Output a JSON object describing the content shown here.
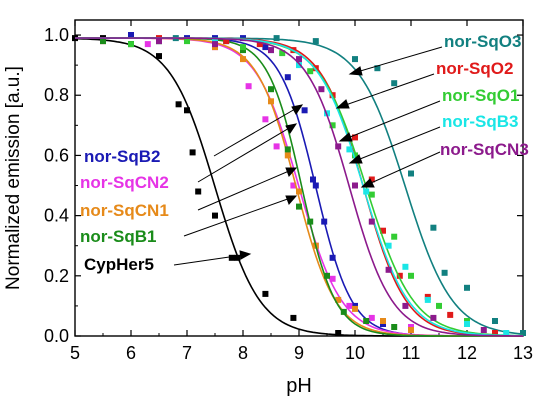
{
  "chart_data": {
    "type": "scatter",
    "xlabel": "pH",
    "ylabel": "Normalized emission [a.u.]",
    "xlim": [
      5,
      13
    ],
    "ylim": [
      0,
      1.05
    ],
    "x_ticks": [
      5,
      6,
      7,
      8,
      9,
      10,
      11,
      12,
      13
    ],
    "y_ticks": [
      0.0,
      0.2,
      0.4,
      0.6,
      0.8,
      1.0
    ],
    "x_tick_labels": [
      "5",
      "6",
      "7",
      "8",
      "9",
      "10",
      "11",
      "12",
      "13"
    ],
    "y_tick_labels": [
      "0.0",
      "0.2",
      "0.4",
      "0.6",
      "0.8",
      "1.0"
    ],
    "grid": false,
    "fit_curves": "sigmoidal (Boltzmann) fit per series",
    "series": [
      {
        "name": "CypHer5",
        "color": "#000000",
        "pKa": 7.5,
        "slope": 0.4,
        "points": [
          [
            5.0,
            0.99
          ],
          [
            5.5,
            0.99
          ],
          [
            6.0,
            0.97
          ],
          [
            6.5,
            0.93
          ],
          [
            6.85,
            0.77
          ],
          [
            7.0,
            0.75
          ],
          [
            7.1,
            0.61
          ],
          [
            7.2,
            0.48
          ],
          [
            7.5,
            0.4
          ],
          [
            7.8,
            0.26
          ],
          [
            7.9,
            0.26
          ],
          [
            8.4,
            0.14
          ],
          [
            8.9,
            0.06
          ],
          [
            9.7,
            0.01
          ]
        ]
      },
      {
        "name": "nor-SqB2",
        "color": "#1a1ab4",
        "pKa": 9.3,
        "slope": 0.32,
        "points": [
          [
            6.0,
            1.0
          ],
          [
            7.0,
            0.99
          ],
          [
            7.5,
            0.99
          ],
          [
            8.0,
            0.99
          ],
          [
            8.4,
            0.96
          ],
          [
            8.8,
            0.86
          ],
          [
            9.1,
            0.75
          ],
          [
            9.25,
            0.52
          ],
          [
            9.3,
            0.5
          ],
          [
            9.45,
            0.38
          ],
          [
            9.6,
            0.26
          ],
          [
            10.0,
            0.1
          ],
          [
            10.5,
            0.04
          ]
        ]
      },
      {
        "name": "nor-SqCN2",
        "color": "#e633e6",
        "pKa": 9.0,
        "slope": 0.38,
        "points": [
          [
            5.5,
            0.98
          ],
          [
            6.3,
            0.97
          ],
          [
            7.5,
            0.96
          ],
          [
            8.1,
            0.83
          ],
          [
            8.4,
            0.72
          ],
          [
            8.6,
            0.63
          ],
          [
            8.9,
            0.5
          ],
          [
            9.3,
            0.3
          ],
          [
            9.6,
            0.19
          ],
          [
            9.9,
            0.1
          ],
          [
            10.3,
            0.06
          ],
          [
            11.0,
            0.03
          ]
        ]
      },
      {
        "name": "nor-SqCN1",
        "color": "#e68a1a",
        "pKa": 8.95,
        "slope": 0.35,
        "points": [
          [
            5.5,
            0.98
          ],
          [
            6.5,
            0.98
          ],
          [
            7.5,
            0.96
          ],
          [
            8.0,
            0.92
          ],
          [
            8.5,
            0.78
          ],
          [
            8.8,
            0.6
          ],
          [
            9.0,
            0.48
          ],
          [
            9.3,
            0.3
          ],
          [
            9.7,
            0.12
          ],
          [
            10.0,
            0.09
          ],
          [
            10.5,
            0.05
          ],
          [
            11.0,
            0.02
          ]
        ]
      },
      {
        "name": "nor-SqB1",
        "color": "#1a8c1a",
        "pKa": 9.05,
        "slope": 0.3,
        "points": [
          [
            5.5,
            0.98
          ],
          [
            6.5,
            0.98
          ],
          [
            7.5,
            0.98
          ],
          [
            8.0,
            0.95
          ],
          [
            8.5,
            0.82
          ],
          [
            8.8,
            0.62
          ],
          [
            9.0,
            0.43
          ],
          [
            9.2,
            0.38
          ],
          [
            9.5,
            0.2
          ],
          [
            9.8,
            0.08
          ],
          [
            10.2,
            0.05
          ],
          [
            10.7,
            0.03
          ]
        ]
      },
      {
        "name": "nor-SqO3",
        "color": "#128080",
        "pKa": 10.9,
        "slope": 0.42,
        "points": [
          [
            6.8,
            0.99
          ],
          [
            7.7,
            0.98
          ],
          [
            8.6,
            0.99
          ],
          [
            9.3,
            0.98
          ],
          [
            10.0,
            0.92
          ],
          [
            10.4,
            0.89
          ],
          [
            10.7,
            0.84
          ],
          [
            11.0,
            0.54
          ],
          [
            11.4,
            0.36
          ],
          [
            11.6,
            0.21
          ],
          [
            12.0,
            0.16
          ],
          [
            12.5,
            0.05
          ],
          [
            13.0,
            0.01
          ]
        ]
      },
      {
        "name": "nor-SqO2",
        "color": "#e01a1a",
        "pKa": 10.15,
        "slope": 0.38,
        "points": [
          [
            6.5,
            0.99
          ],
          [
            7.7,
            0.98
          ],
          [
            8.3,
            0.97
          ],
          [
            8.9,
            0.95
          ],
          [
            9.3,
            0.89
          ],
          [
            9.6,
            0.8
          ],
          [
            10.0,
            0.66
          ],
          [
            10.3,
            0.52
          ],
          [
            10.5,
            0.35
          ],
          [
            10.8,
            0.2
          ],
          [
            11.3,
            0.13
          ],
          [
            11.7,
            0.07
          ],
          [
            12.5,
            0.01
          ]
        ]
      },
      {
        "name": "nor-SqO1",
        "color": "#33cc33",
        "pKa": 10.2,
        "slope": 0.42,
        "points": [
          [
            6.0,
            0.97
          ],
          [
            7.0,
            0.98
          ],
          [
            8.0,
            0.96
          ],
          [
            8.7,
            0.94
          ],
          [
            9.2,
            0.88
          ],
          [
            9.6,
            0.7
          ],
          [
            10.0,
            0.6
          ],
          [
            10.3,
            0.47
          ],
          [
            10.7,
            0.33
          ],
          [
            11.0,
            0.2
          ],
          [
            11.5,
            0.1
          ],
          [
            12.0,
            0.05
          ]
        ]
      },
      {
        "name": "nor-SqB3",
        "color": "#1ae6e6",
        "pKa": 10.15,
        "slope": 0.4,
        "points": [
          [
            6.5,
            0.98
          ],
          [
            7.5,
            0.98
          ],
          [
            8.5,
            0.95
          ],
          [
            9.0,
            0.9
          ],
          [
            9.5,
            0.74
          ],
          [
            9.9,
            0.62
          ],
          [
            10.2,
            0.48
          ],
          [
            10.6,
            0.3
          ],
          [
            10.9,
            0.23
          ],
          [
            11.3,
            0.12
          ],
          [
            12.0,
            0.04
          ],
          [
            12.7,
            0.01
          ]
        ]
      },
      {
        "name": "nor-SqCN3",
        "color": "#8c1a8c",
        "pKa": 9.9,
        "slope": 0.38,
        "points": [
          [
            6.5,
            0.98
          ],
          [
            7.5,
            0.97
          ],
          [
            8.5,
            0.95
          ],
          [
            9.0,
            0.92
          ],
          [
            9.4,
            0.82
          ],
          [
            9.7,
            0.63
          ],
          [
            10.0,
            0.5
          ],
          [
            10.3,
            0.38
          ],
          [
            10.6,
            0.22
          ],
          [
            10.9,
            0.1
          ],
          [
            11.4,
            0.06
          ],
          [
            12.3,
            0.02
          ]
        ]
      }
    ]
  },
  "labels": {
    "nor_SqO3": "nor-SqO3",
    "nor_SqO2": "nor-SqO2",
    "nor_SqO1": "nor-SqO1",
    "nor_SqB3": "nor-SqB3",
    "nor_SqCN3": "nor-SqCN3",
    "nor_SqB2": "nor-SqB2",
    "nor_SqCN2": "nor-SqCN2",
    "nor_SqCN1": "nor-SqCN1",
    "nor_SqB1": "nor-SqB1",
    "CypHer5": "CypHer5"
  }
}
